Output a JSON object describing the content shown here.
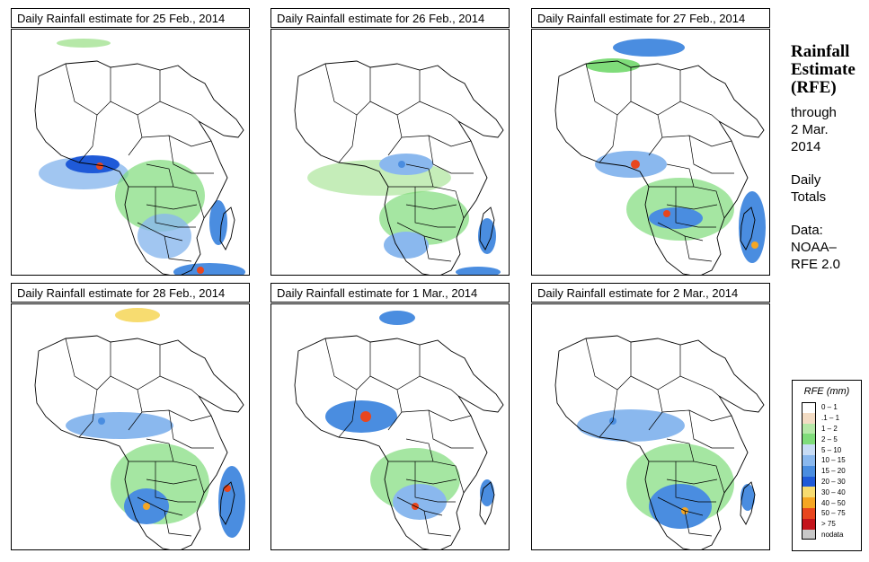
{
  "panels": [
    {
      "title": "Daily Rainfall estimate for  25 Feb., 2014"
    },
    {
      "title": "Daily Rainfall estimate for  26 Feb., 2014"
    },
    {
      "title": "Daily Rainfall estimate for  27 Feb., 2014"
    },
    {
      "title": "Daily Rainfall estimate for  28 Feb., 2014"
    },
    {
      "title": "Daily Rainfall estimate for  1 Mar., 2014"
    },
    {
      "title": "Daily Rainfall estimate for  2 Mar., 2014"
    }
  ],
  "side": {
    "title1": "Rainfall",
    "title2": "Estimate",
    "title3": "(RFE)",
    "through": "through",
    "date1": "2 Mar.",
    "date2": "2014",
    "daily1": "Daily",
    "daily2": "Totals",
    "data1": "Data:",
    "data2": "NOAA–",
    "data3": "RFE 2.0"
  },
  "legend": {
    "title": "RFE (mm)",
    "items": [
      {
        "label": "0 – 1",
        "color": "#ffffff"
      },
      {
        "label": ".1 – 1",
        "color": "#f3dcc4"
      },
      {
        "label": "1 – 2",
        "color": "#b6e8a8"
      },
      {
        "label": "2 – 5",
        "color": "#7fdc7a"
      },
      {
        "label": "5 – 10",
        "color": "#c8dcf5"
      },
      {
        "label": "10 – 15",
        "color": "#8ab8ee"
      },
      {
        "label": "15 – 20",
        "color": "#4a8de0"
      },
      {
        "label": "20 – 30",
        "color": "#1f5ad8"
      },
      {
        "label": "30 – 40",
        "color": "#f7dc70"
      },
      {
        "label": "40 – 50",
        "color": "#f5a623"
      },
      {
        "label": "50 – 75",
        "color": "#e8461e"
      },
      {
        "label": "> 75",
        "color": "#c4151c"
      },
      {
        "label": "nodata",
        "color": "#c8c8c8"
      }
    ]
  }
}
